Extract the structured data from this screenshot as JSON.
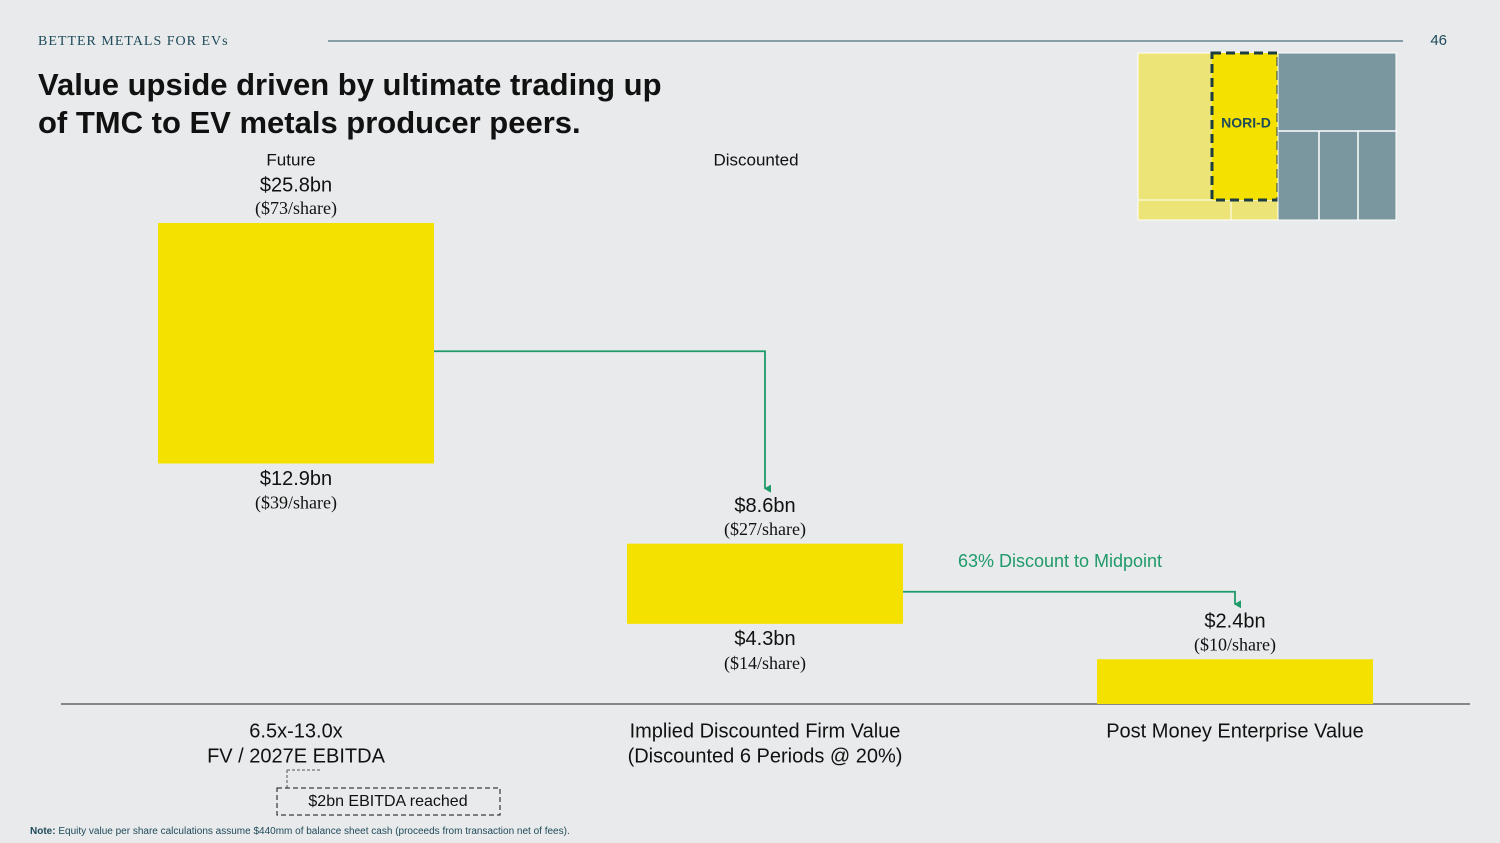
{
  "chart_data": {
    "type": "floating_bar",
    "kicker": "BETTER METALS FOR EVs",
    "page_number": "46",
    "title": [
      "Value upside driven by ultimate trading up",
      "of TMC to EV metals producer peers."
    ],
    "column_headers": [
      "Future",
      "Discounted"
    ],
    "categories": [
      [
        "6.5x-13.0x",
        "FV / 2027E EBITDA"
      ],
      [
        "Implied Discounted Firm Value",
        "(Discounted 6 Periods @ 20%)"
      ],
      [
        "Post Money Enterprise Value"
      ]
    ],
    "lows": [
      12.9,
      4.3,
      0
    ],
    "highs": [
      25.8,
      8.6,
      2.4
    ],
    "high_labels": [
      "$25.8bn",
      "$8.6bn",
      "$2.4bn"
    ],
    "high_share_labels": [
      "($73/share)",
      "($27/share)",
      "($10/share)"
    ],
    "low_labels": [
      "$12.9bn",
      "$4.3bn",
      null
    ],
    "low_share_labels": [
      "($39/share)",
      "($14/share)",
      null
    ],
    "color": "#f5e100",
    "annotation": "63% Discount to Midpoint",
    "callout": "$2bn EBITDA reached",
    "note_label": "Note:",
    "note": "Equity value per share calculations assume $440mm of balance sheet cash (proceeds from transaction net of fees).",
    "inset_label": "NORI-D"
  }
}
